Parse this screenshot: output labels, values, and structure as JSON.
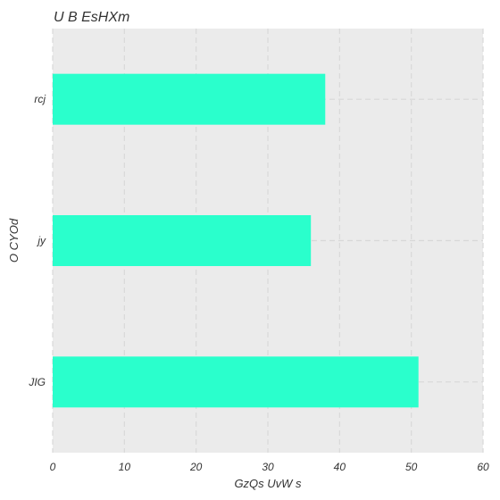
{
  "chart_data": {
    "type": "bar",
    "orientation": "horizontal",
    "title": "U B EsHXm",
    "xlabel": "GzQs UvW s",
    "ylabel": "O CYOd",
    "categories": [
      "rcj",
      "jy",
      "JIG"
    ],
    "values": [
      38,
      36,
      51
    ],
    "xlim": [
      0,
      60
    ],
    "xticks": [
      0,
      10,
      20,
      30,
      40,
      50,
      60
    ],
    "grid": true,
    "colors": {
      "bar": "#2affcc",
      "plot_background": "#ebebeb",
      "grid": "#d8d8d8"
    }
  }
}
